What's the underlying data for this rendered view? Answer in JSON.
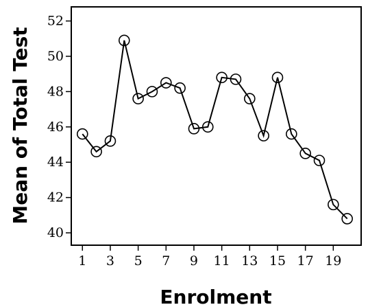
{
  "chart_data": {
    "type": "line",
    "title": "",
    "xlabel": "Enrolment",
    "ylabel": "Mean of Total Test",
    "x": [
      1,
      2,
      3,
      4,
      5,
      6,
      7,
      8,
      9,
      10,
      11,
      12,
      13,
      14,
      15,
      16,
      17,
      18,
      19,
      20
    ],
    "series": [
      {
        "values": [
          45.6,
          44.6,
          45.2,
          50.9,
          47.6,
          48.0,
          48.5,
          48.2,
          45.9,
          46.0,
          48.8,
          48.7,
          47.6,
          45.5,
          48.8,
          45.6,
          44.5,
          44.1,
          41.6,
          40.8
        ],
        "marker": "open-circle",
        "color": "#000000"
      }
    ],
    "xlim": [
      0.2,
      21
    ],
    "ylim": [
      39.3,
      52.8
    ],
    "xticks": [
      "1",
      "3",
      "5",
      "7",
      "9",
      "11",
      "13",
      "15",
      "17",
      "19"
    ],
    "yticks": [
      "40",
      "42",
      "44",
      "46",
      "48",
      "50",
      "52"
    ],
    "grid": false
  }
}
